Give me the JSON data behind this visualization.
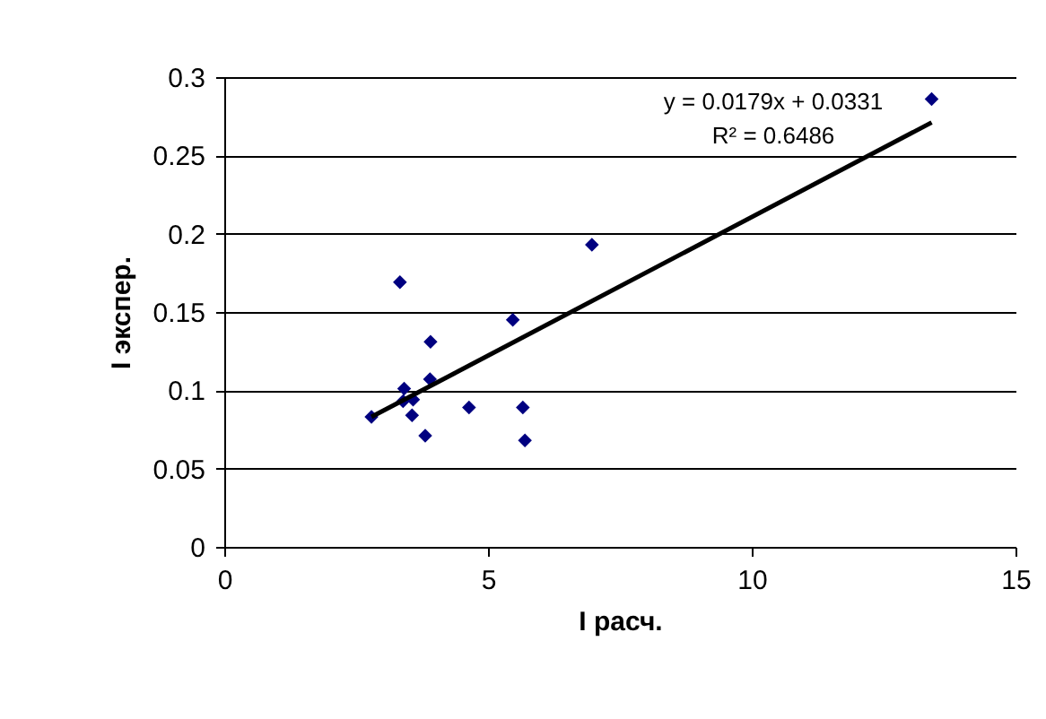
{
  "chart_data": {
    "type": "scatter",
    "xlabel": "I расч.",
    "ylabel": "I экспер.",
    "xlim": [
      0,
      15
    ],
    "xticks": [
      0,
      5,
      10,
      15
    ],
    "ylim": [
      0,
      0.3
    ],
    "yticks": [
      0,
      0.05,
      0.1,
      0.15,
      0.2,
      0.25,
      0.3
    ],
    "grid": "y",
    "annotations": [
      "y = 0.0179x + 0.0331",
      "R² = 0.6486"
    ],
    "series": [
      {
        "color": "#000080",
        "marker": "diamond",
        "x": [
          2.79,
          3.33,
          3.41,
          3.39,
          3.58,
          3.56,
          3.81,
          3.91,
          3.9,
          4.64,
          5.47,
          5.66,
          5.7,
          6.97,
          13.41
        ],
        "values": [
          0.083,
          0.169,
          0.101,
          0.093,
          0.094,
          0.084,
          0.071,
          0.131,
          0.107,
          0.089,
          0.145,
          0.089,
          0.068,
          0.193,
          0.286
        ]
      },
      {
        "type": "line",
        "color": "#000000",
        "x": [
          2.79,
          13.41
        ],
        "values": [
          0.083,
          0.271
        ]
      }
    ]
  }
}
